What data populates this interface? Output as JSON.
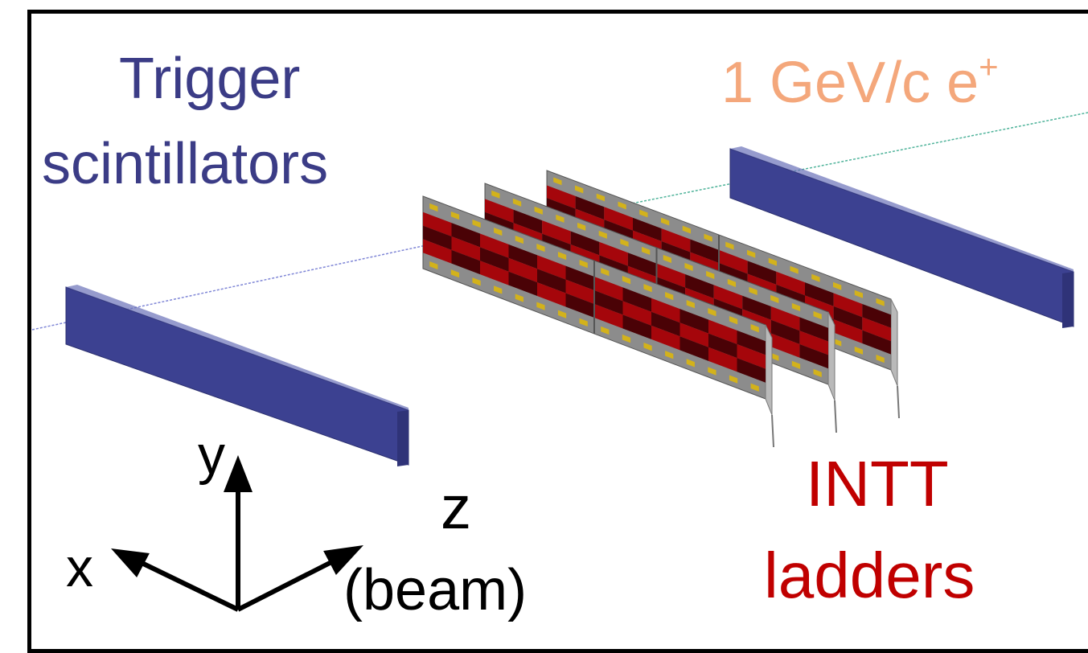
{
  "labels": {
    "trigger_line1": "Trigger",
    "trigger_line2": "scintillators",
    "beam_main": "1 GeV/c e",
    "beam_sup": "+",
    "intt_line1": "INTT",
    "intt_line2": "ladders",
    "axis_x": "x",
    "axis_y": "y",
    "axis_z": "z",
    "axis_beam": "(beam)"
  },
  "colors": {
    "trigger_text": "#3b3c86",
    "beam_text": "#f4a77b",
    "intt_text": "#c00000",
    "scintillator": "#3c4191",
    "sensor_red": "#a5060b",
    "sensor_dark": "#4a0206",
    "ladder_gray": "#8c8c8c",
    "chip_yellow": "#d3b21b"
  }
}
